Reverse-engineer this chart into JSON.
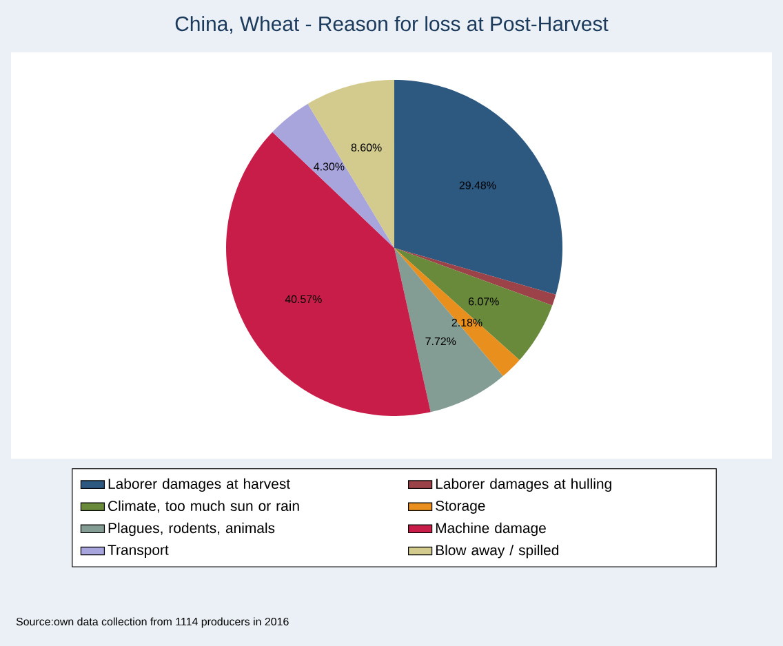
{
  "chart_data": {
    "type": "pie",
    "title": "China, Wheat - Reason for loss at Post-Harvest",
    "categories": [
      "Laborer damages at harvest",
      "Laborer damages at hulling",
      "Climate, too much sun or rain",
      "Storage",
      "Plagues, rodents, animals",
      "Machine damage",
      "Transport",
      "Blow away / spilled"
    ],
    "values": [
      29.48,
      1.08,
      6.07,
      2.18,
      7.72,
      40.57,
      4.3,
      8.6
    ],
    "value_labels": [
      "29.48%",
      null,
      "6.07%",
      "2.18%",
      "7.72%",
      "40.57%",
      "4.30%",
      "8.60%"
    ],
    "colors": [
      "#2d5880",
      "#9c4249",
      "#6a8a3b",
      "#e88f1d",
      "#849d94",
      "#c81d48",
      "#a8a4dc",
      "#d3ca8d"
    ],
    "legend": "bottom",
    "annotations": [
      "Source:own data collection from 1114 producers in 2016"
    ]
  }
}
